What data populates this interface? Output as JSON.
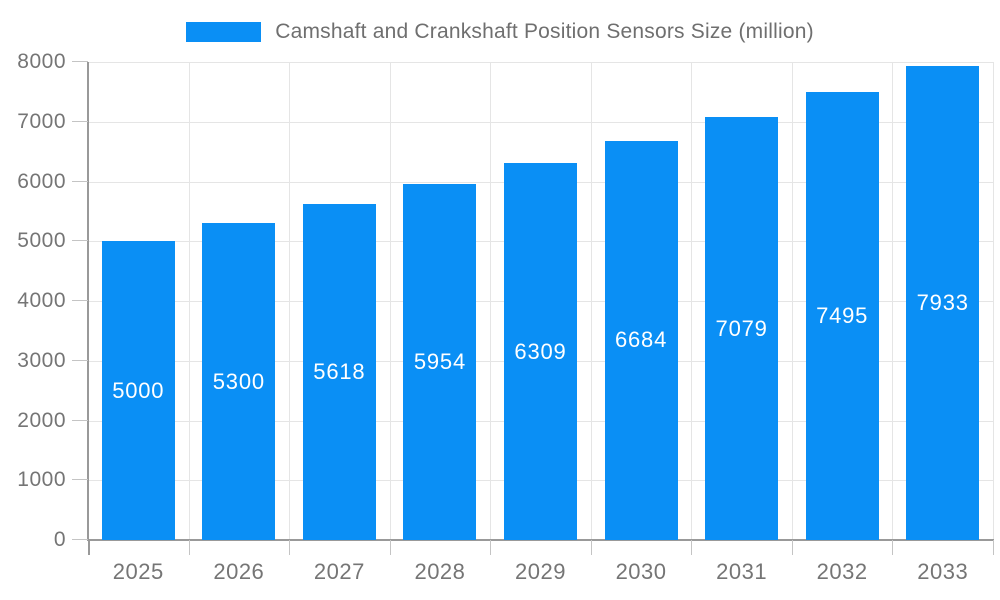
{
  "legend": {
    "series_label": "Camshaft and Crankshaft Position Sensors Size (million)"
  },
  "colors": {
    "bar": "#0A8FF5",
    "grid_line": "#e5e5e5",
    "axis_line": "#999999",
    "tick_mark": "#c4c4c4",
    "tick_label": "#757575",
    "title_text": "#6f6f6f",
    "value_label": "#ffffff",
    "background": "#ffffff"
  },
  "chart_data": {
    "type": "bar",
    "title": "Camshaft and Crankshaft Position Sensors Size (million)",
    "categories": [
      "2025",
      "2026",
      "2027",
      "2028",
      "2029",
      "2030",
      "2031",
      "2032",
      "2033"
    ],
    "values": [
      5000,
      5300,
      5618,
      5954,
      6309,
      6684,
      7079,
      7495,
      7933
    ],
    "xlabel": "",
    "ylabel": "",
    "ylim": [
      0,
      8000
    ],
    "ytick_step": 1000,
    "yticks": [
      0,
      1000,
      2000,
      3000,
      4000,
      5000,
      6000,
      7000,
      8000
    ],
    "grid": true,
    "legend_position": "top",
    "value_label_position": "inside-middle",
    "bar_color": "#0A8FF5"
  }
}
